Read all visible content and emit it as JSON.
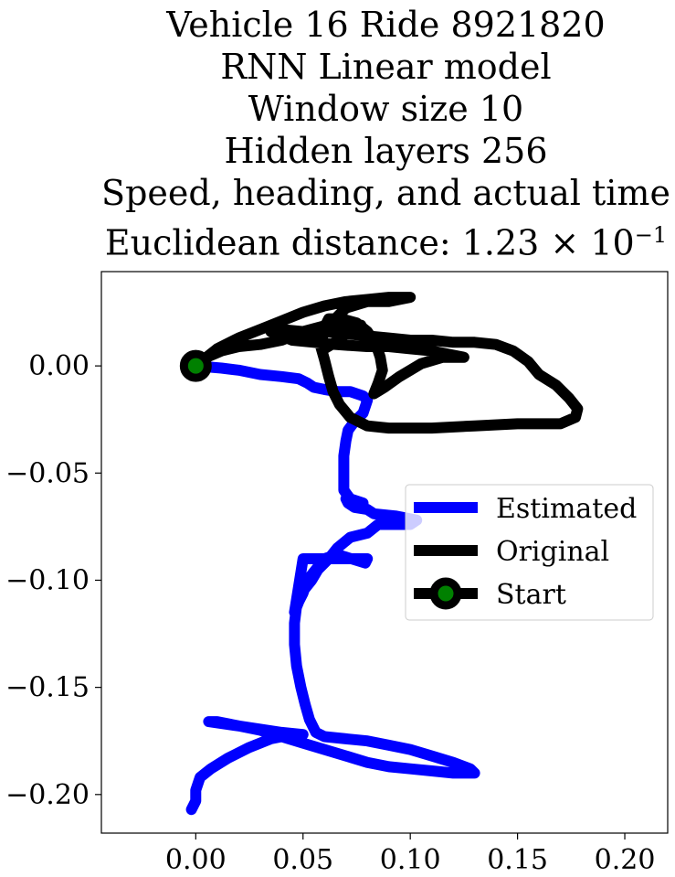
{
  "chart_data": {
    "type": "line",
    "title_lines": [
      "Vehicle 16 Ride 8921820",
      "RNN Linear model",
      "Window size 10",
      "Hidden layers 256",
      "Speed, heading, and actual time",
      "Euclidean distance: 1.23 × 10"
    ],
    "title_exponent": "−1",
    "xlabel": "",
    "ylabel": "",
    "xlim": [
      -0.044,
      0.22
    ],
    "ylim": [
      -0.218,
      0.044
    ],
    "x_ticks": [
      0.0,
      0.05,
      0.1,
      0.15,
      0.2
    ],
    "x_tick_labels": [
      "0.00",
      "0.05",
      "0.10",
      "0.15",
      "0.20"
    ],
    "y_ticks": [
      0.0,
      -0.05,
      -0.1,
      -0.15,
      -0.2
    ],
    "y_tick_labels": [
      "0.00",
      "−0.05",
      "−0.10",
      "−0.15",
      "−0.20"
    ],
    "grid": false,
    "legend_position": "center-right",
    "series": [
      {
        "name": "Estimated",
        "color": "#0000ff",
        "points": [
          [
            0.0,
            0.0
          ],
          [
            0.012,
            -0.001
          ],
          [
            0.02,
            -0.002
          ],
          [
            0.03,
            -0.004
          ],
          [
            0.04,
            -0.005
          ],
          [
            0.048,
            -0.006
          ],
          [
            0.052,
            -0.008
          ],
          [
            0.055,
            -0.01
          ],
          [
            0.06,
            -0.011
          ],
          [
            0.066,
            -0.012
          ],
          [
            0.072,
            -0.012
          ],
          [
            0.078,
            -0.014
          ],
          [
            0.08,
            -0.016
          ],
          [
            0.078,
            -0.022
          ],
          [
            0.074,
            -0.026
          ],
          [
            0.071,
            -0.03
          ],
          [
            0.07,
            -0.035
          ],
          [
            0.069,
            -0.042
          ],
          [
            0.069,
            -0.05
          ],
          [
            0.069,
            -0.058
          ],
          [
            0.072,
            -0.062
          ],
          [
            0.078,
            -0.064
          ],
          [
            0.07,
            -0.062
          ],
          [
            0.071,
            -0.064
          ],
          [
            0.074,
            -0.066
          ],
          [
            0.08,
            -0.067
          ],
          [
            0.083,
            -0.069
          ],
          [
            0.093,
            -0.07
          ],
          [
            0.103,
            -0.072
          ],
          [
            0.1,
            -0.074
          ],
          [
            0.085,
            -0.074
          ],
          [
            0.08,
            -0.078
          ],
          [
            0.072,
            -0.08
          ],
          [
            0.066,
            -0.085
          ],
          [
            0.062,
            -0.09
          ],
          [
            0.057,
            -0.095
          ],
          [
            0.054,
            -0.1
          ],
          [
            0.05,
            -0.105
          ],
          [
            0.048,
            -0.11
          ],
          [
            0.046,
            -0.115
          ],
          [
            0.05,
            -0.09
          ],
          [
            0.06,
            -0.09
          ],
          [
            0.071,
            -0.09
          ],
          [
            0.08,
            -0.09
          ],
          [
            0.079,
            -0.092
          ],
          [
            0.066,
            -0.088
          ],
          [
            0.06,
            -0.09
          ],
          [
            0.056,
            -0.095
          ],
          [
            0.052,
            -0.1
          ],
          [
            0.05,
            -0.106
          ],
          [
            0.047,
            -0.112
          ],
          [
            0.046,
            -0.12
          ],
          [
            0.046,
            -0.13
          ],
          [
            0.047,
            -0.14
          ],
          [
            0.049,
            -0.15
          ],
          [
            0.051,
            -0.158
          ],
          [
            0.053,
            -0.165
          ],
          [
            0.056,
            -0.171
          ],
          [
            0.06,
            -0.173
          ],
          [
            0.07,
            -0.174
          ],
          [
            0.08,
            -0.175
          ],
          [
            0.09,
            -0.177
          ],
          [
            0.1,
            -0.179
          ],
          [
            0.11,
            -0.182
          ],
          [
            0.12,
            -0.185
          ],
          [
            0.128,
            -0.188
          ],
          [
            0.13,
            -0.19
          ],
          [
            0.12,
            -0.19
          ],
          [
            0.11,
            -0.189
          ],
          [
            0.1,
            -0.188
          ],
          [
            0.09,
            -0.187
          ],
          [
            0.08,
            -0.185
          ],
          [
            0.07,
            -0.182
          ],
          [
            0.06,
            -0.179
          ],
          [
            0.05,
            -0.176
          ],
          [
            0.04,
            -0.173
          ],
          [
            0.03,
            -0.17
          ],
          [
            0.02,
            -0.168
          ],
          [
            0.01,
            -0.166
          ],
          [
            0.006,
            -0.166
          ],
          [
            0.02,
            -0.168
          ],
          [
            0.04,
            -0.171
          ],
          [
            0.05,
            -0.172
          ],
          [
            0.045,
            -0.172
          ],
          [
            0.035,
            -0.174
          ],
          [
            0.025,
            -0.178
          ],
          [
            0.015,
            -0.183
          ],
          [
            0.007,
            -0.188
          ],
          [
            0.002,
            -0.192
          ],
          [
            0.0,
            -0.198
          ],
          [
            0.0,
            -0.203
          ],
          [
            -0.002,
            -0.207
          ]
        ]
      },
      {
        "name": "Original",
        "color": "#000000",
        "points": [
          [
            0.0,
            0.0
          ],
          [
            0.01,
            0.008
          ],
          [
            0.02,
            0.013
          ],
          [
            0.03,
            0.017
          ],
          [
            0.04,
            0.021
          ],
          [
            0.05,
            0.025
          ],
          [
            0.06,
            0.028
          ],
          [
            0.07,
            0.03
          ],
          [
            0.08,
            0.031
          ],
          [
            0.09,
            0.032
          ],
          [
            0.1,
            0.032
          ],
          [
            0.09,
            0.03
          ],
          [
            0.08,
            0.03
          ],
          [
            0.07,
            0.027
          ],
          [
            0.065,
            0.022
          ],
          [
            0.06,
            0.016
          ],
          [
            0.058,
            0.01
          ],
          [
            0.06,
            0.003
          ],
          [
            0.062,
            -0.005
          ],
          [
            0.064,
            -0.012
          ],
          [
            0.067,
            -0.018
          ],
          [
            0.072,
            -0.024
          ],
          [
            0.08,
            -0.028
          ],
          [
            0.09,
            -0.029
          ],
          [
            0.1,
            -0.029
          ],
          [
            0.11,
            -0.029
          ],
          [
            0.13,
            -0.028
          ],
          [
            0.15,
            -0.027
          ],
          [
            0.17,
            -0.027
          ],
          [
            0.177,
            -0.024
          ],
          [
            0.178,
            -0.02
          ],
          [
            0.174,
            -0.015
          ],
          [
            0.168,
            -0.009
          ],
          [
            0.16,
            -0.004
          ],
          [
            0.155,
            0.002
          ],
          [
            0.148,
            0.007
          ],
          [
            0.14,
            0.01
          ],
          [
            0.13,
            0.011
          ],
          [
            0.12,
            0.011
          ],
          [
            0.11,
            0.012
          ],
          [
            0.1,
            0.012
          ],
          [
            0.09,
            0.013
          ],
          [
            0.08,
            0.014
          ],
          [
            0.07,
            0.015
          ],
          [
            0.06,
            0.016
          ],
          [
            0.05,
            0.016
          ],
          [
            0.04,
            0.017
          ],
          [
            0.035,
            0.016
          ],
          [
            0.045,
            0.012
          ],
          [
            0.055,
            0.011
          ],
          [
            0.065,
            0.01
          ],
          [
            0.08,
            0.009
          ],
          [
            0.09,
            0.009
          ],
          [
            0.1,
            0.008
          ],
          [
            0.11,
            0.007
          ],
          [
            0.12,
            0.005
          ],
          [
            0.125,
            0.004
          ],
          [
            0.115,
            0.004
          ],
          [
            0.105,
            0.001
          ],
          [
            0.095,
            -0.005
          ],
          [
            0.088,
            -0.01
          ],
          [
            0.083,
            -0.013
          ],
          [
            0.085,
            -0.008
          ],
          [
            0.087,
            -0.002
          ],
          [
            0.086,
            0.004
          ],
          [
            0.084,
            0.01
          ],
          [
            0.08,
            0.016
          ],
          [
            0.075,
            0.02
          ],
          [
            0.068,
            0.022
          ],
          [
            0.062,
            0.022
          ],
          [
            0.06,
            0.018
          ],
          [
            0.058,
            0.012
          ],
          [
            0.06,
            0.008
          ],
          [
            0.065,
            0.011
          ],
          [
            0.07,
            0.015
          ],
          [
            0.077,
            0.019
          ],
          [
            0.065,
            0.02
          ],
          [
            0.05,
            0.016
          ],
          [
            0.04,
            0.012
          ],
          [
            0.03,
            0.01
          ],
          [
            0.02,
            0.009
          ],
          [
            0.012,
            0.007
          ],
          [
            0.005,
            0.004
          ],
          [
            0.0,
            0.0
          ]
        ]
      }
    ],
    "start_point": {
      "name": "Start",
      "x": 0.0,
      "y": 0.0,
      "edge_color": "#000000",
      "face_color": "#008000"
    }
  }
}
